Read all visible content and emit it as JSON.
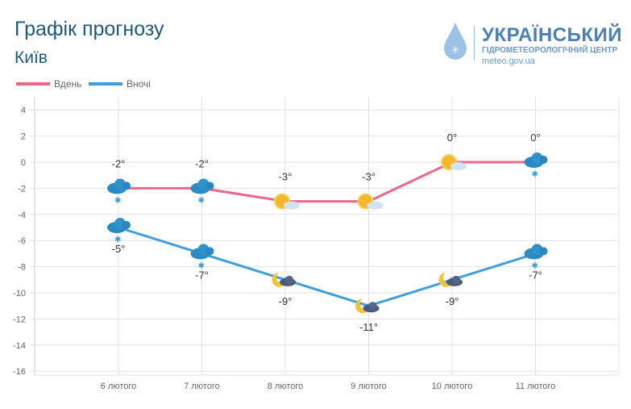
{
  "header": {
    "title": "Графік прогнозу",
    "city": "Київ"
  },
  "logo": {
    "line1": "УКРАЇНСЬКИЙ",
    "line2": "ГІДРОМЕТЕОРОЛОГІЧНИЙ ЦЕНТР",
    "line3": "meteo.gov.ua"
  },
  "chart_data": {
    "type": "line",
    "categories": [
      "6 лютого",
      "7 лютого",
      "8 лютого",
      "9 лютого",
      "10 лютого",
      "11 лютого"
    ],
    "series": [
      {
        "name": "Вдень",
        "color": "#e8698a",
        "values": [
          -2,
          -2,
          -3,
          -3,
          0,
          0
        ],
        "labels": [
          "-2°",
          "-2°",
          "-3°",
          "-3°",
          "0°",
          "0°"
        ],
        "icons": [
          "cloud-snow",
          "cloud-snow",
          "sun-cloud",
          "sun-cloud",
          "sun-cloud",
          "cloud-snow"
        ]
      },
      {
        "name": "Вночі",
        "color": "#3fa0dc",
        "values": [
          -5,
          -7,
          -9,
          -11,
          -9,
          -7
        ],
        "labels": [
          "-5°",
          "-7°",
          "-9°",
          "-11°",
          "-9°",
          "-7°"
        ],
        "icons": [
          "cloud-snow",
          "cloud-snow",
          "moon-cloud",
          "moon-cloud",
          "moon-cloud",
          "cloud-snow"
        ]
      }
    ],
    "yticks": [
      4,
      2,
      0,
      -2,
      -4,
      -6,
      -8,
      -10,
      -12,
      -14,
      -16
    ],
    "ylim": [
      -16,
      4
    ],
    "legend": "top-left",
    "grid": true
  }
}
